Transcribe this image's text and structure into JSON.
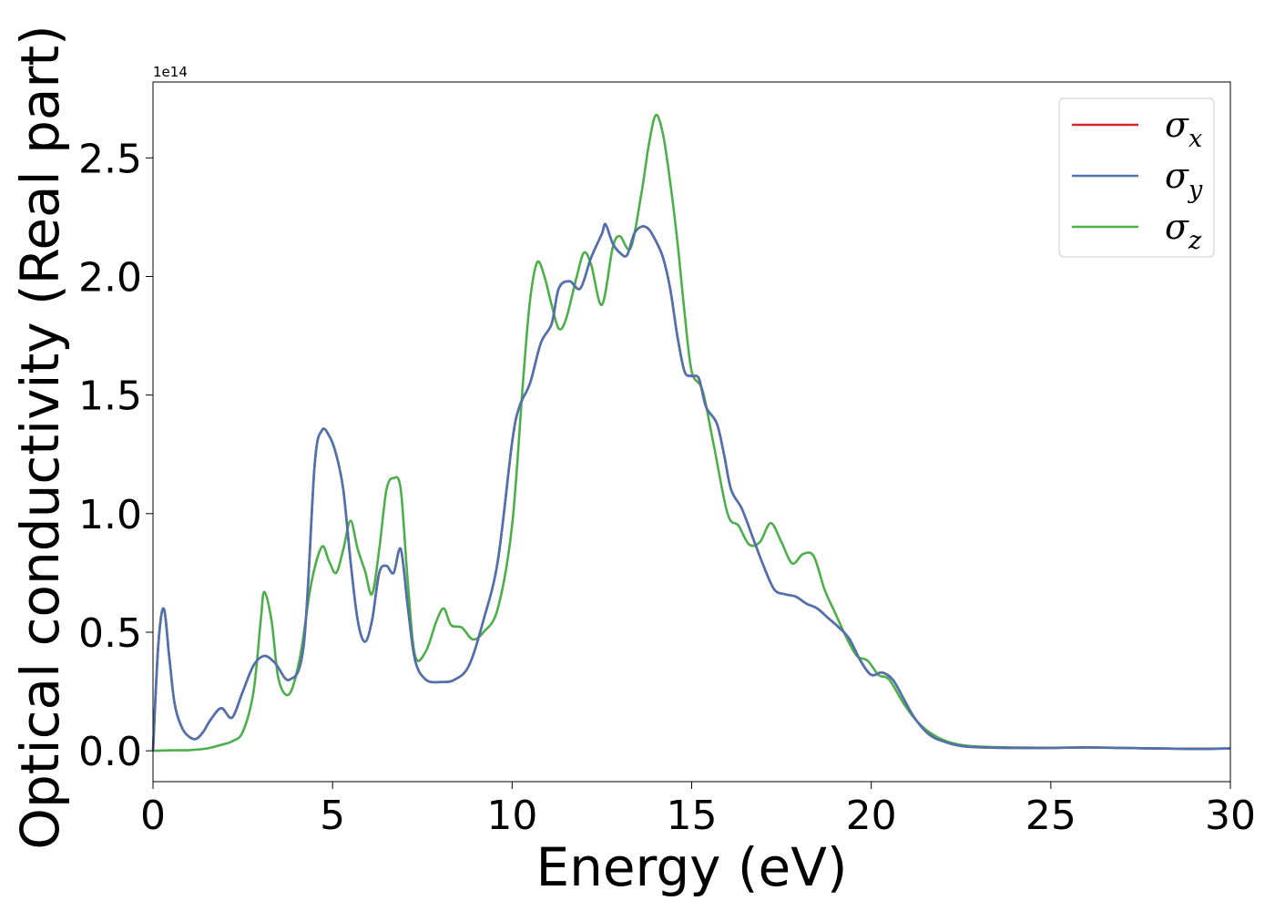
{
  "chart_data": {
    "type": "line",
    "xlabel": "Energy (eV)",
    "ylabel": "Optical conductivity (Real part)",
    "y_offset_label": "1e14",
    "xlim": [
      0,
      30
    ],
    "ylim": [
      -0.13,
      2.82
    ],
    "xticks": [
      0,
      5,
      10,
      15,
      20,
      25,
      30
    ],
    "xtick_labels": [
      "0",
      "5",
      "10",
      "15",
      "20",
      "25",
      "30"
    ],
    "yticks": [
      0.0,
      0.5,
      1.0,
      1.5,
      2.0,
      2.5
    ],
    "ytick_labels": [
      "0.0",
      "0.5",
      "1.0",
      "1.5",
      "2.0",
      "2.5"
    ],
    "grid": false,
    "legend_position": "top-right",
    "series": [
      {
        "name": "σx",
        "legend_base": "σ",
        "legend_sub": "x",
        "color": "#d62728",
        "x": [
          0,
          0.15,
          0.3,
          0.45,
          0.6,
          0.8,
          1.0,
          1.2,
          1.4,
          1.6,
          1.9,
          2.2,
          2.5,
          2.8,
          3.1,
          3.4,
          3.8,
          4.2,
          4.5,
          4.7,
          4.9,
          5.1,
          5.3,
          5.5,
          5.7,
          5.9,
          6.1,
          6.3,
          6.5,
          6.7,
          6.9,
          7.1,
          7.3,
          7.6,
          8.0,
          8.4,
          8.8,
          9.2,
          9.6,
          10.0,
          10.2,
          10.5,
          10.8,
          11.1,
          11.3,
          11.6,
          11.9,
          12.2,
          12.5,
          12.6,
          12.8,
          13.0,
          13.2,
          13.4,
          13.6,
          13.8,
          14.0,
          14.2,
          14.4,
          14.6,
          14.8,
          15.0,
          15.2,
          15.4,
          15.7,
          15.9,
          16.1,
          16.4,
          16.7,
          17.0,
          17.3,
          17.6,
          17.9,
          18.2,
          18.5,
          18.8,
          19.1,
          19.4,
          19.7,
          20.0,
          20.3,
          20.6,
          20.9,
          21.2,
          21.6,
          22.0,
          22.5,
          23.0,
          24.0,
          25.0,
          26.0,
          27.0,
          28.0,
          29.0,
          30.0
        ],
        "values": [
          0.0,
          0.45,
          0.6,
          0.4,
          0.2,
          0.1,
          0.06,
          0.05,
          0.08,
          0.13,
          0.18,
          0.14,
          0.25,
          0.36,
          0.4,
          0.37,
          0.3,
          0.45,
          1.2,
          1.35,
          1.33,
          1.25,
          1.1,
          0.8,
          0.55,
          0.46,
          0.55,
          0.75,
          0.78,
          0.75,
          0.85,
          0.6,
          0.38,
          0.3,
          0.29,
          0.3,
          0.36,
          0.55,
          0.8,
          1.3,
          1.45,
          1.55,
          1.72,
          1.8,
          1.95,
          1.98,
          1.95,
          2.08,
          2.18,
          2.22,
          2.14,
          2.1,
          2.09,
          2.18,
          2.21,
          2.2,
          2.15,
          2.08,
          1.95,
          1.75,
          1.6,
          1.58,
          1.57,
          1.45,
          1.38,
          1.25,
          1.1,
          1.02,
          0.9,
          0.78,
          0.68,
          0.66,
          0.65,
          0.62,
          0.6,
          0.56,
          0.52,
          0.47,
          0.38,
          0.32,
          0.33,
          0.3,
          0.22,
          0.14,
          0.07,
          0.04,
          0.02,
          0.015,
          0.012,
          0.012,
          0.014,
          0.012,
          0.01,
          0.008,
          0.01
        ]
      },
      {
        "name": "σy",
        "legend_base": "σ",
        "legend_sub": "y",
        "color": "#4c72b0",
        "x": [
          0,
          0.15,
          0.3,
          0.45,
          0.6,
          0.8,
          1.0,
          1.2,
          1.4,
          1.6,
          1.9,
          2.2,
          2.5,
          2.8,
          3.1,
          3.4,
          3.8,
          4.2,
          4.5,
          4.7,
          4.9,
          5.1,
          5.3,
          5.5,
          5.7,
          5.9,
          6.1,
          6.3,
          6.5,
          6.7,
          6.9,
          7.1,
          7.3,
          7.6,
          8.0,
          8.4,
          8.8,
          9.2,
          9.6,
          10.0,
          10.2,
          10.5,
          10.8,
          11.1,
          11.3,
          11.6,
          11.9,
          12.2,
          12.5,
          12.6,
          12.8,
          13.0,
          13.2,
          13.4,
          13.6,
          13.8,
          14.0,
          14.2,
          14.4,
          14.6,
          14.8,
          15.0,
          15.2,
          15.4,
          15.7,
          15.9,
          16.1,
          16.4,
          16.7,
          17.0,
          17.3,
          17.6,
          17.9,
          18.2,
          18.5,
          18.8,
          19.1,
          19.4,
          19.7,
          20.0,
          20.3,
          20.6,
          20.9,
          21.2,
          21.6,
          22.0,
          22.5,
          23.0,
          24.0,
          25.0,
          26.0,
          27.0,
          28.0,
          29.0,
          30.0
        ],
        "values": [
          0.0,
          0.45,
          0.6,
          0.4,
          0.2,
          0.1,
          0.06,
          0.05,
          0.08,
          0.13,
          0.18,
          0.14,
          0.25,
          0.36,
          0.4,
          0.37,
          0.3,
          0.45,
          1.2,
          1.35,
          1.33,
          1.25,
          1.1,
          0.8,
          0.55,
          0.46,
          0.55,
          0.75,
          0.78,
          0.75,
          0.85,
          0.6,
          0.38,
          0.3,
          0.29,
          0.3,
          0.36,
          0.55,
          0.8,
          1.3,
          1.45,
          1.55,
          1.72,
          1.8,
          1.95,
          1.98,
          1.95,
          2.08,
          2.18,
          2.22,
          2.14,
          2.1,
          2.09,
          2.18,
          2.21,
          2.2,
          2.15,
          2.08,
          1.95,
          1.75,
          1.6,
          1.58,
          1.57,
          1.45,
          1.38,
          1.25,
          1.1,
          1.02,
          0.9,
          0.78,
          0.68,
          0.66,
          0.65,
          0.62,
          0.6,
          0.56,
          0.52,
          0.47,
          0.38,
          0.32,
          0.33,
          0.3,
          0.22,
          0.14,
          0.07,
          0.04,
          0.02,
          0.015,
          0.012,
          0.012,
          0.014,
          0.012,
          0.01,
          0.008,
          0.01
        ]
      },
      {
        "name": "σz",
        "legend_base": "σ",
        "legend_sub": "z",
        "color": "#4daf4a",
        "x": [
          0,
          0.5,
          1.0,
          1.5,
          1.9,
          2.2,
          2.5,
          2.8,
          3.0,
          3.1,
          3.3,
          3.5,
          3.8,
          4.1,
          4.4,
          4.7,
          4.9,
          5.1,
          5.3,
          5.5,
          5.7,
          5.9,
          6.1,
          6.3,
          6.5,
          6.7,
          6.9,
          7.1,
          7.3,
          7.6,
          7.9,
          8.1,
          8.3,
          8.6,
          8.9,
          9.2,
          9.6,
          10.0,
          10.3,
          10.5,
          10.7,
          10.9,
          11.1,
          11.3,
          11.5,
          11.8,
          12.0,
          12.2,
          12.5,
          12.8,
          13.0,
          13.3,
          13.6,
          13.8,
          14.0,
          14.2,
          14.4,
          14.6,
          14.8,
          15.0,
          15.3,
          15.6,
          16.0,
          16.3,
          16.6,
          16.9,
          17.2,
          17.5,
          17.8,
          18.1,
          18.4,
          18.7,
          19.0,
          19.3,
          19.6,
          19.9,
          20.2,
          20.5,
          20.9,
          21.3,
          21.7,
          22.1,
          22.5,
          23.0,
          24.0,
          25.0,
          26.0,
          27.0,
          28.0,
          29.0,
          30.0
        ],
        "values": [
          0.0,
          0.002,
          0.003,
          0.01,
          0.025,
          0.04,
          0.08,
          0.25,
          0.55,
          0.67,
          0.55,
          0.3,
          0.24,
          0.4,
          0.7,
          0.86,
          0.8,
          0.75,
          0.85,
          0.97,
          0.85,
          0.76,
          0.66,
          0.85,
          1.1,
          1.15,
          1.1,
          0.7,
          0.4,
          0.42,
          0.55,
          0.6,
          0.53,
          0.52,
          0.47,
          0.5,
          0.6,
          0.95,
          1.55,
          1.9,
          2.06,
          2.0,
          1.88,
          1.78,
          1.82,
          2.0,
          2.1,
          2.05,
          1.88,
          2.12,
          2.17,
          2.12,
          2.35,
          2.55,
          2.68,
          2.6,
          2.4,
          2.15,
          1.85,
          1.6,
          1.52,
          1.3,
          1.0,
          0.95,
          0.87,
          0.88,
          0.96,
          0.88,
          0.79,
          0.83,
          0.82,
          0.68,
          0.58,
          0.48,
          0.4,
          0.38,
          0.32,
          0.3,
          0.2,
          0.12,
          0.07,
          0.04,
          0.025,
          0.018,
          0.014,
          0.013,
          0.015,
          0.012,
          0.01,
          0.009,
          0.01
        ]
      }
    ]
  }
}
